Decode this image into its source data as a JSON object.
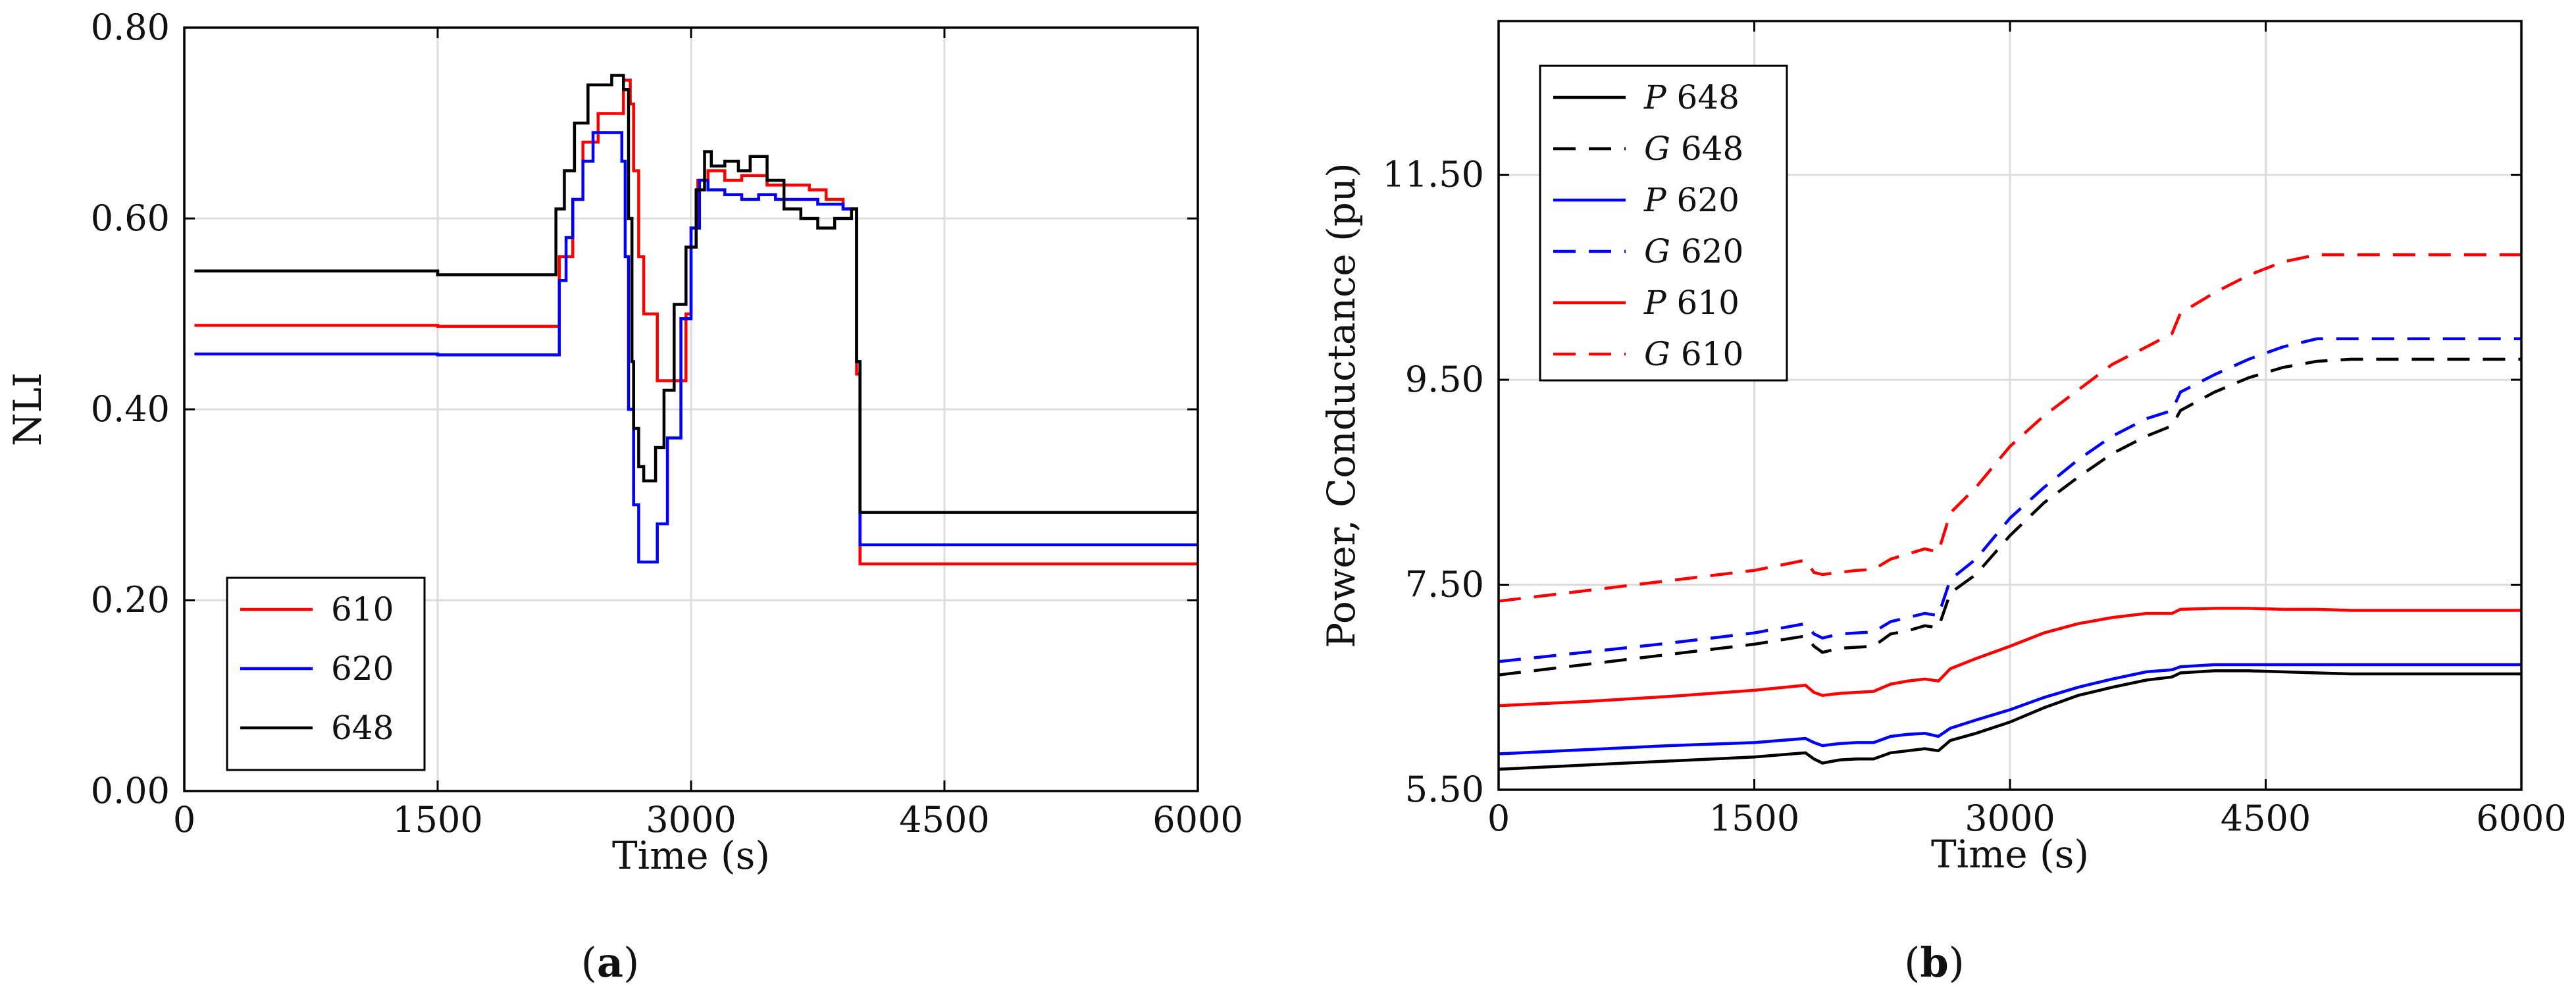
{
  "colors": {
    "black": "#000000",
    "blue": "#0000ff",
    "red": "#ff0000",
    "grid": "#dcdcdc"
  },
  "chart_data": [
    {
      "type": "line",
      "panel": "a",
      "caption": {
        "open": "(",
        "letter": "a",
        "close": ")"
      },
      "xlabel": "Time (s)",
      "ylabel": "NLI",
      "xlim": [
        0,
        6000
      ],
      "ylim": [
        0,
        0.8
      ],
      "xticks": [
        0,
        1500,
        3000,
        4500,
        6000
      ],
      "xtick_labels": [
        "0",
        "1500",
        "3000",
        "4500",
        "6000"
      ],
      "yticks": [
        0,
        0.2,
        0.4,
        0.6,
        0.8
      ],
      "ytick_labels": [
        "0.00",
        "0.20",
        "0.40",
        "0.60",
        "0.80"
      ],
      "grid": true,
      "legend_position": "bottom-left",
      "series": [
        {
          "name": "610",
          "color": "#ff0000",
          "dash": "solid",
          "step": true,
          "x": [
            60,
            1500,
            2220,
            2300,
            2360,
            2450,
            2600,
            2640,
            2660,
            2690,
            2720,
            2770,
            2800,
            2840,
            2920,
            2970,
            3000,
            3040,
            3100,
            3200,
            3300,
            3450,
            3600,
            3700,
            3800,
            3900,
            3980,
            4000,
            6000
          ],
          "y": [
            0.488,
            0.487,
            0.56,
            0.62,
            0.68,
            0.71,
            0.745,
            0.72,
            0.65,
            0.56,
            0.5,
            0.5,
            0.43,
            0.43,
            0.43,
            0.5,
            0.59,
            0.64,
            0.65,
            0.64,
            0.645,
            0.635,
            0.635,
            0.63,
            0.62,
            0.61,
            0.437,
            0.238,
            0.238
          ]
        },
        {
          "name": "620",
          "color": "#0000ff",
          "dash": "solid",
          "step": true,
          "x": [
            60,
            1500,
            2220,
            2260,
            2300,
            2360,
            2420,
            2560,
            2590,
            2610,
            2630,
            2660,
            2690,
            2800,
            2860,
            2940,
            3000,
            3050,
            3100,
            3200,
            3300,
            3400,
            3500,
            3600,
            3750,
            3900,
            3980,
            4000,
            6000
          ],
          "y": [
            0.458,
            0.457,
            0.535,
            0.58,
            0.62,
            0.66,
            0.69,
            0.69,
            0.66,
            0.56,
            0.4,
            0.3,
            0.24,
            0.28,
            0.37,
            0.495,
            0.59,
            0.64,
            0.63,
            0.625,
            0.62,
            0.625,
            0.62,
            0.62,
            0.615,
            0.61,
            0.45,
            0.258,
            0.258
          ]
        },
        {
          "name": "648",
          "color": "#000000",
          "dash": "solid",
          "step": true,
          "x": [
            60,
            1500,
            2200,
            2250,
            2310,
            2390,
            2530,
            2600,
            2630,
            2650,
            2660,
            2690,
            2720,
            2790,
            2840,
            2900,
            2970,
            3030,
            3080,
            3120,
            3200,
            3280,
            3350,
            3450,
            3550,
            3650,
            3750,
            3850,
            3950,
            3980,
            4000,
            6000
          ],
          "y": [
            0.545,
            0.541,
            0.61,
            0.65,
            0.7,
            0.74,
            0.75,
            0.735,
            0.6,
            0.45,
            0.38,
            0.34,
            0.325,
            0.36,
            0.42,
            0.51,
            0.57,
            0.63,
            0.67,
            0.655,
            0.66,
            0.65,
            0.665,
            0.64,
            0.61,
            0.6,
            0.59,
            0.6,
            0.61,
            0.45,
            0.292,
            0.292
          ]
        }
      ]
    },
    {
      "type": "line",
      "panel": "b",
      "caption": {
        "open": "(",
        "letter": "b",
        "close": ")"
      },
      "xlabel": "Time (s)",
      "ylabel": "Power, Conductance (pu)",
      "xlim": [
        0,
        6000
      ],
      "ylim": [
        5.5,
        13.0
      ],
      "xticks": [
        0,
        1500,
        3000,
        4500,
        6000
      ],
      "xtick_labels": [
        "0",
        "1500",
        "3000",
        "4500",
        "6000"
      ],
      "yticks": [
        5.5,
        7.5,
        9.5,
        11.5
      ],
      "ytick_labels": [
        "5.50",
        "7.50",
        "9.50",
        "11.50"
      ],
      "grid": true,
      "legend_position": "top-left",
      "series": [
        {
          "name": "P 648",
          "symbol": "P",
          "label": "648",
          "color": "#000000",
          "dash": "solid",
          "x": [
            0,
            500,
            1000,
            1500,
            1800,
            1850,
            1900,
            2000,
            2100,
            2200,
            2300,
            2400,
            2500,
            2580,
            2650,
            2800,
            3000,
            3200,
            3400,
            3600,
            3800,
            3950,
            4000,
            4200,
            4400,
            4600,
            4800,
            5000,
            5500,
            6000
          ],
          "y": [
            5.7,
            5.74,
            5.78,
            5.82,
            5.86,
            5.8,
            5.76,
            5.79,
            5.8,
            5.8,
            5.86,
            5.88,
            5.9,
            5.88,
            5.98,
            6.05,
            6.16,
            6.3,
            6.42,
            6.5,
            6.57,
            6.6,
            6.64,
            6.66,
            6.66,
            6.65,
            6.64,
            6.63,
            6.63,
            6.63
          ]
        },
        {
          "name": "G 648",
          "symbol": "G",
          "label": "648",
          "color": "#000000",
          "dash": "dashed",
          "x": [
            0,
            500,
            1000,
            1500,
            1800,
            1850,
            1900,
            2000,
            2100,
            2200,
            2300,
            2400,
            2500,
            2580,
            2650,
            2800,
            3000,
            3200,
            3400,
            3600,
            3800,
            3950,
            4000,
            4200,
            4400,
            4600,
            4800,
            5000,
            5500,
            6000
          ],
          "y": [
            6.62,
            6.72,
            6.82,
            6.92,
            7.0,
            6.9,
            6.84,
            6.88,
            6.89,
            6.9,
            7.02,
            7.05,
            7.1,
            7.08,
            7.42,
            7.6,
            7.98,
            8.3,
            8.55,
            8.78,
            8.95,
            9.05,
            9.2,
            9.38,
            9.52,
            9.62,
            9.68,
            9.7,
            9.7,
            9.7
          ]
        },
        {
          "name": "P 620",
          "symbol": "P",
          "label": "620",
          "color": "#0000ff",
          "dash": "solid",
          "x": [
            0,
            500,
            1000,
            1500,
            1800,
            1850,
            1900,
            2000,
            2100,
            2200,
            2300,
            2400,
            2500,
            2580,
            2650,
            2800,
            3000,
            3200,
            3400,
            3600,
            3800,
            3950,
            4000,
            4200,
            4400,
            4600,
            4800,
            5000,
            5500,
            6000
          ],
          "y": [
            5.85,
            5.89,
            5.93,
            5.96,
            6.0,
            5.96,
            5.93,
            5.95,
            5.96,
            5.96,
            6.02,
            6.04,
            6.05,
            6.02,
            6.1,
            6.18,
            6.28,
            6.4,
            6.5,
            6.58,
            6.65,
            6.67,
            6.7,
            6.72,
            6.72,
            6.72,
            6.72,
            6.72,
            6.72,
            6.72
          ]
        },
        {
          "name": "G 620",
          "symbol": "G",
          "label": "620",
          "color": "#0000ff",
          "dash": "dashed",
          "x": [
            0,
            500,
            1000,
            1500,
            1800,
            1850,
            1900,
            2000,
            2100,
            2200,
            2300,
            2400,
            2500,
            2580,
            2650,
            2800,
            3000,
            3200,
            3400,
            3600,
            3800,
            3950,
            4000,
            4200,
            4400,
            4600,
            4800,
            5000,
            5500,
            6000
          ],
          "y": [
            6.75,
            6.84,
            6.93,
            7.03,
            7.12,
            7.02,
            6.98,
            7.02,
            7.03,
            7.04,
            7.14,
            7.18,
            7.22,
            7.2,
            7.55,
            7.75,
            8.15,
            8.45,
            8.72,
            8.95,
            9.12,
            9.2,
            9.38,
            9.55,
            9.7,
            9.82,
            9.9,
            9.9,
            9.9,
            9.9
          ]
        },
        {
          "name": "P 610",
          "symbol": "P",
          "label": "610",
          "color": "#ff0000",
          "dash": "solid",
          "x": [
            0,
            500,
            1000,
            1500,
            1800,
            1850,
            1900,
            2000,
            2100,
            2200,
            2300,
            2400,
            2500,
            2580,
            2650,
            2800,
            3000,
            3200,
            3400,
            3600,
            3800,
            3950,
            4000,
            4200,
            4400,
            4600,
            4800,
            5000,
            5500,
            6000
          ],
          "y": [
            6.32,
            6.36,
            6.41,
            6.47,
            6.52,
            6.45,
            6.42,
            6.44,
            6.45,
            6.46,
            6.53,
            6.56,
            6.58,
            6.56,
            6.68,
            6.78,
            6.9,
            7.03,
            7.12,
            7.18,
            7.22,
            7.22,
            7.26,
            7.27,
            7.27,
            7.26,
            7.26,
            7.25,
            7.25,
            7.25
          ]
        },
        {
          "name": "G 610",
          "symbol": "G",
          "label": "610",
          "color": "#ff0000",
          "dash": "dashed",
          "x": [
            0,
            500,
            1000,
            1500,
            1800,
            1850,
            1900,
            2000,
            2100,
            2200,
            2300,
            2400,
            2500,
            2580,
            2650,
            2800,
            3000,
            3200,
            3400,
            3600,
            3800,
            3950,
            4000,
            4200,
            4400,
            4600,
            4800,
            5000,
            5500,
            6000
          ],
          "y": [
            7.34,
            7.44,
            7.54,
            7.64,
            7.74,
            7.62,
            7.6,
            7.62,
            7.64,
            7.65,
            7.75,
            7.8,
            7.85,
            7.82,
            8.2,
            8.45,
            8.85,
            9.15,
            9.4,
            9.65,
            9.82,
            9.95,
            10.15,
            10.35,
            10.52,
            10.65,
            10.72,
            10.72,
            10.72,
            10.72
          ]
        }
      ]
    }
  ]
}
